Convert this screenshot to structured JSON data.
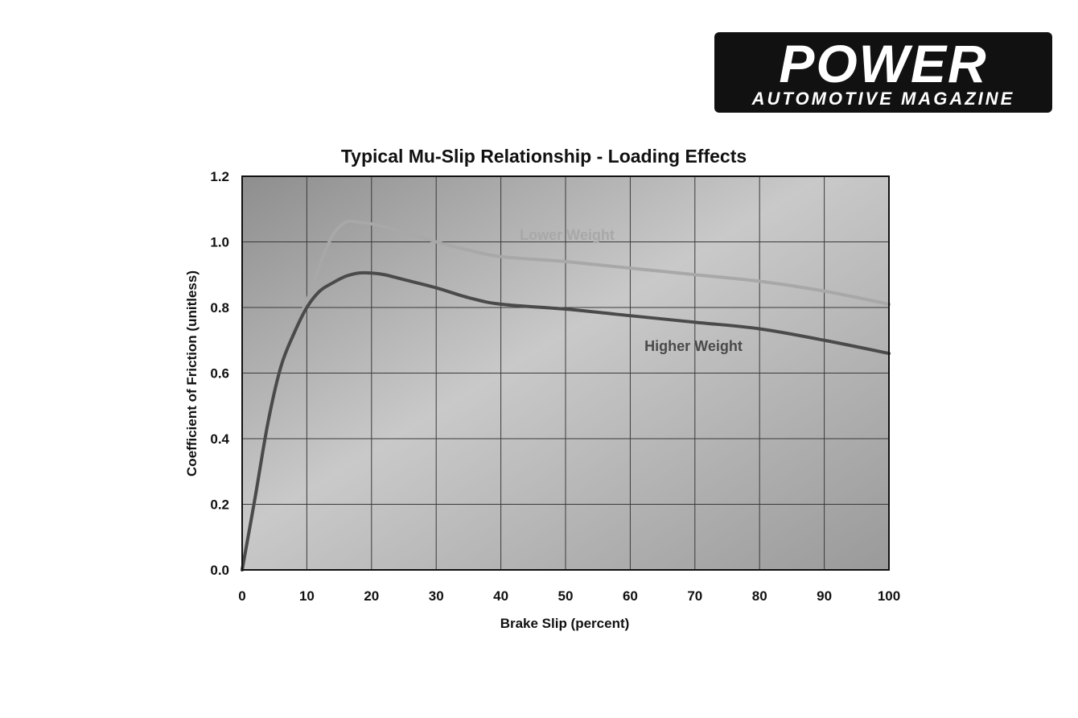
{
  "logo": {
    "wordmark": "POWER",
    "tagline": "AUTOMOTIVE MAGAZINE"
  },
  "colors": {
    "plot_bg_light": "#c9c9c9",
    "plot_bg_dark": "#8e8e8e",
    "grid": "#3a3a3a",
    "lower_weight_line": "#a8a8a8",
    "higher_weight_line": "#4a4a4a"
  },
  "chart_data": {
    "type": "line",
    "title": "Typical Mu-Slip Relationship - Loading Effects",
    "xlabel": "Brake Slip (percent)",
    "ylabel": "Coefficient of Friction (unitless)",
    "xlim": [
      0,
      100
    ],
    "ylim": [
      0,
      1.2
    ],
    "xticks": [
      "0",
      "10",
      "20",
      "30",
      "40",
      "50",
      "60",
      "70",
      "80",
      "90",
      "100"
    ],
    "yticks": [
      "0.0",
      "0.2",
      "0.4",
      "0.6",
      "0.8",
      "1.0",
      "1.2"
    ],
    "grid": true,
    "series": [
      {
        "name": "Lower Weight",
        "x": [
          0,
          2,
          4,
          6,
          8,
          10,
          12,
          14,
          16,
          18,
          20,
          25,
          30,
          35,
          40,
          50,
          60,
          70,
          80,
          90,
          100
        ],
        "y": [
          0.0,
          0.22,
          0.45,
          0.62,
          0.73,
          0.82,
          0.93,
          1.02,
          1.06,
          1.06,
          1.055,
          1.03,
          1.0,
          0.975,
          0.955,
          0.94,
          0.92,
          0.9,
          0.88,
          0.85,
          0.81
        ]
      },
      {
        "name": "Higher Weight",
        "x": [
          0,
          2,
          4,
          6,
          8,
          10,
          12,
          14,
          16,
          18,
          20,
          22,
          25,
          30,
          35,
          40,
          50,
          60,
          70,
          80,
          90,
          100
        ],
        "y": [
          0.0,
          0.22,
          0.45,
          0.62,
          0.72,
          0.8,
          0.85,
          0.875,
          0.895,
          0.905,
          0.905,
          0.9,
          0.885,
          0.86,
          0.83,
          0.81,
          0.795,
          0.775,
          0.755,
          0.735,
          0.7,
          0.66
        ]
      }
    ],
    "annotations": [
      "Lower Weight",
      "Higher Weight"
    ]
  }
}
